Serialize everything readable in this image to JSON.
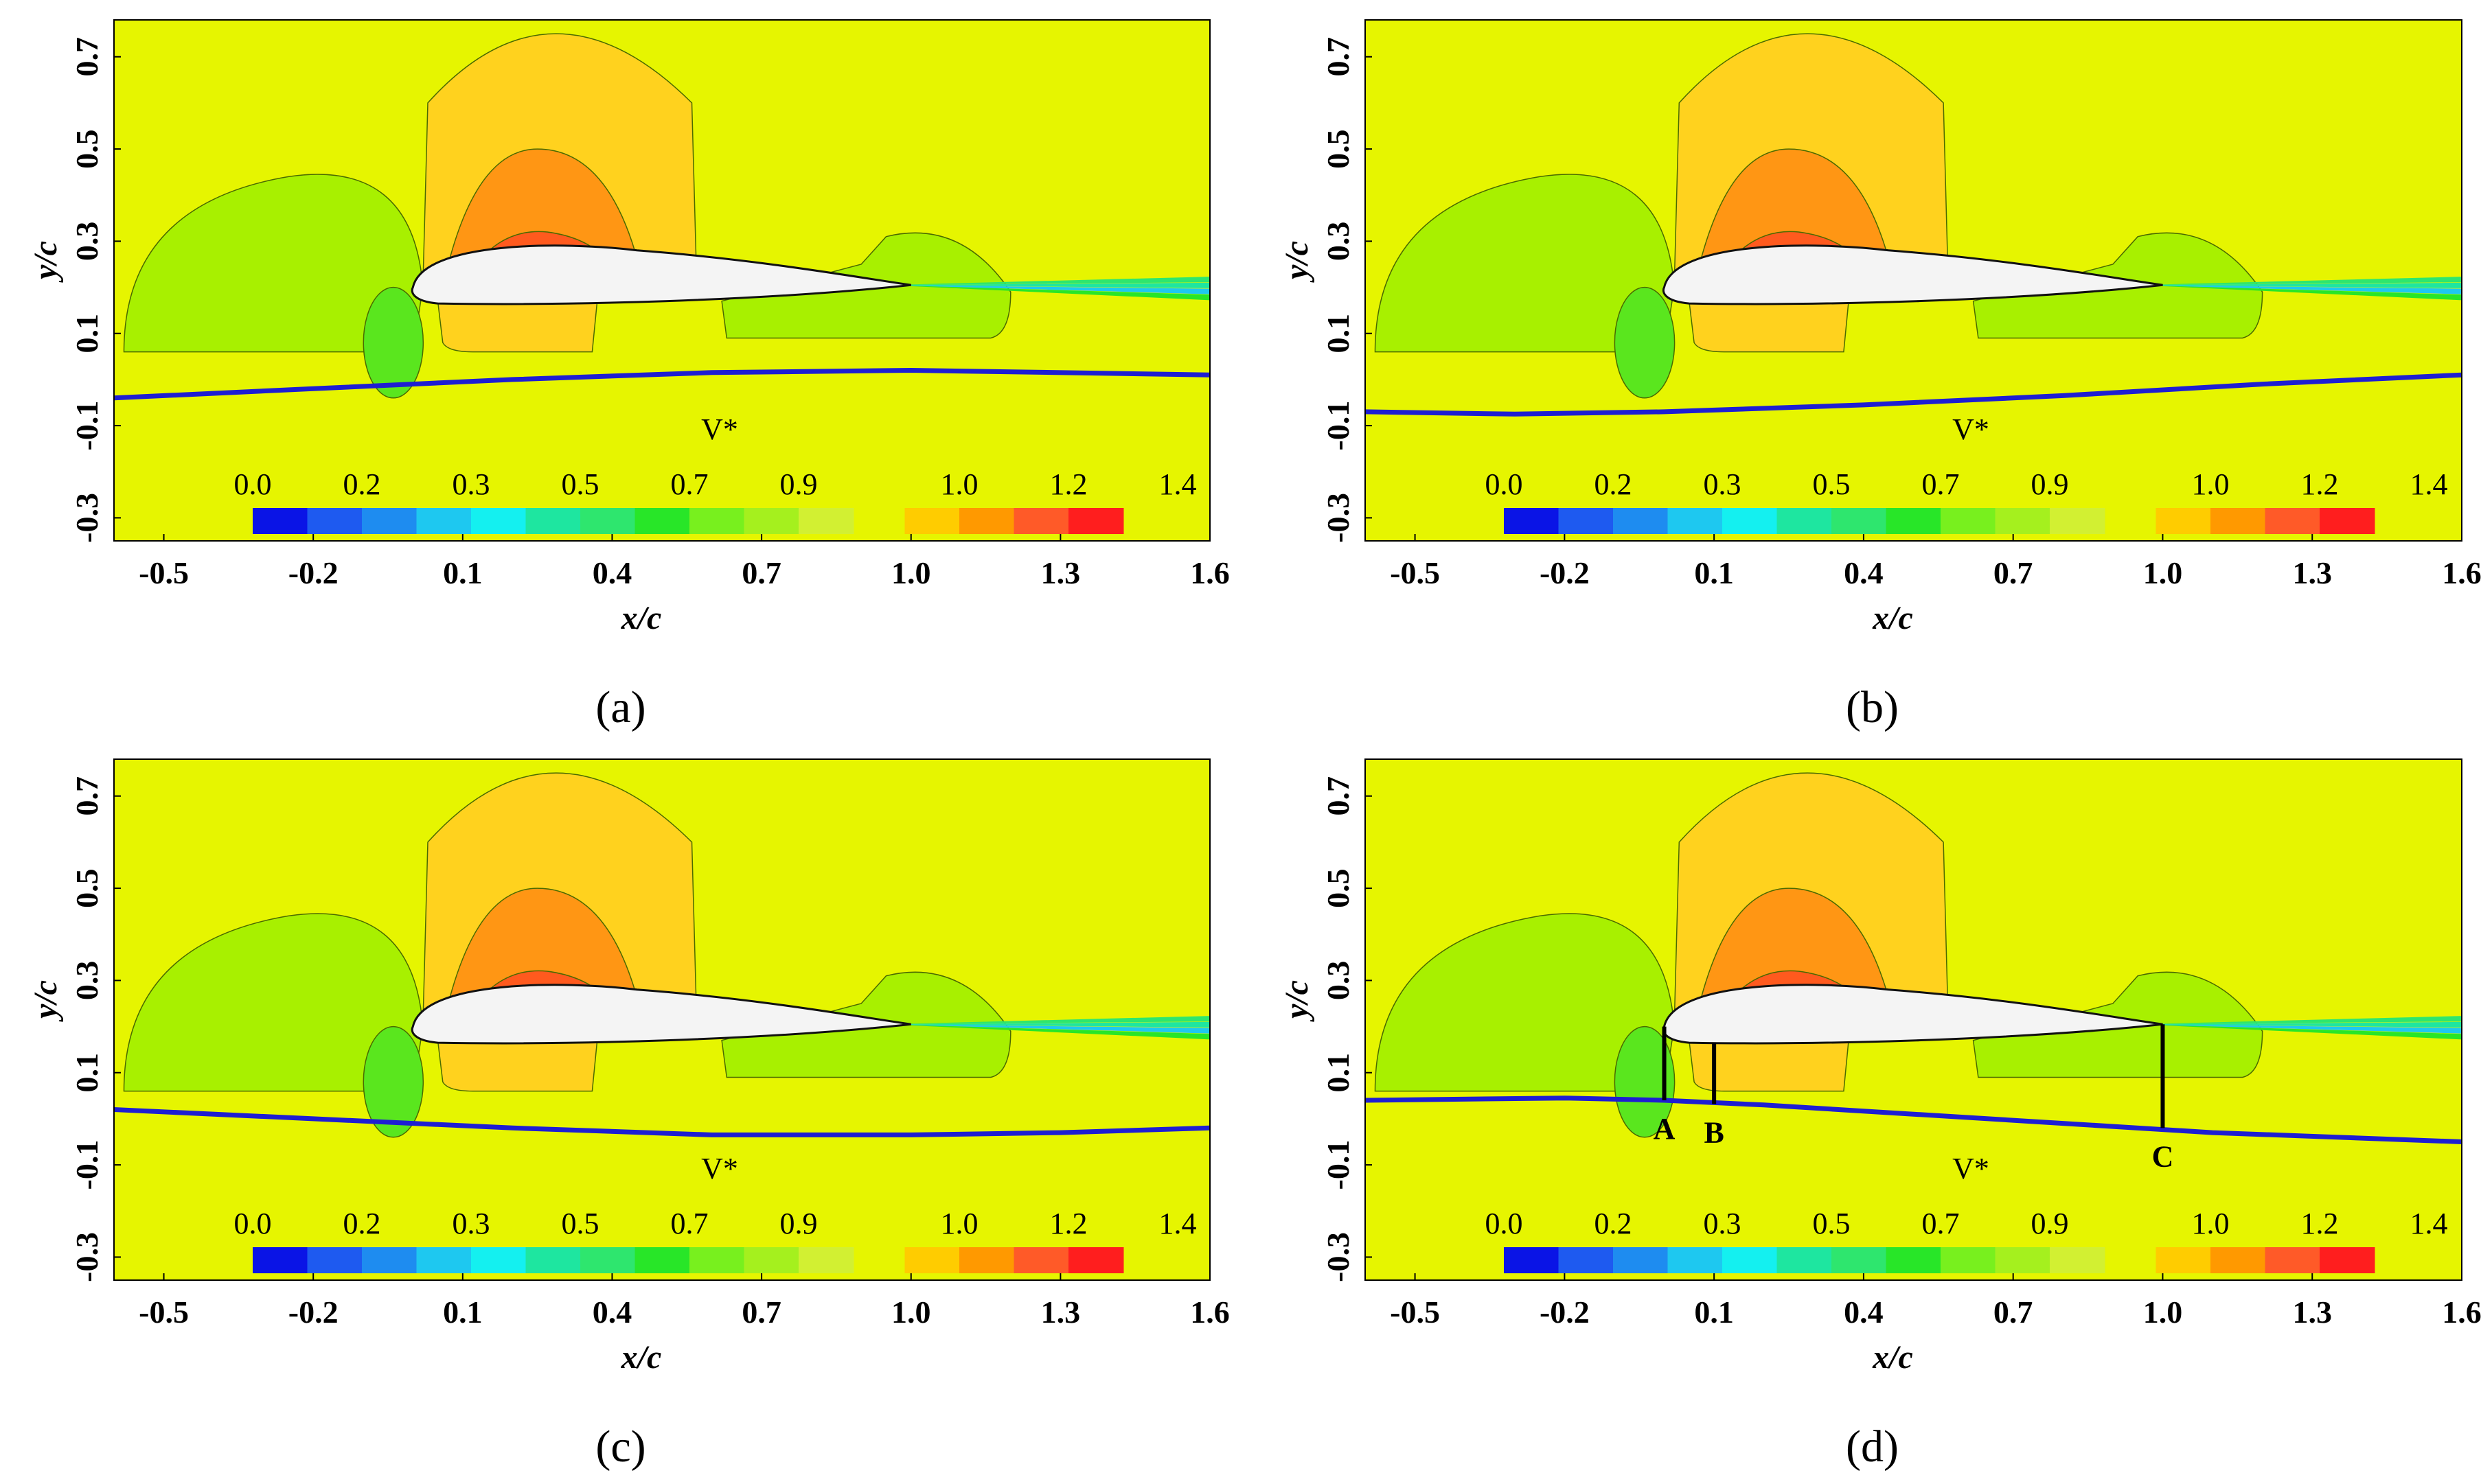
{
  "chart_data": [
    {
      "type": "contour",
      "panel_label": "(a)",
      "title": "",
      "xlabel": "x/c",
      "ylabel": "y/c",
      "xlim": [
        -0.6,
        1.6
      ],
      "ylim": [
        -0.35,
        0.78
      ],
      "xticks": [
        "-0.5",
        "-0.2",
        "0.1",
        "0.4",
        "0.7",
        "1.0",
        "1.3",
        "1.6"
      ],
      "yticks": [
        "-0.3",
        "-0.1",
        "0.1",
        "0.3",
        "0.5",
        "0.7"
      ],
      "colorbar": {
        "title": "V*",
        "labels": [
          "0.0",
          "0.2",
          "0.3",
          "0.5",
          "0.7",
          "0.9",
          "1.0",
          "1.2",
          "1.4"
        ]
      },
      "surface_line": {
        "x": [
          -0.6,
          -0.2,
          0.2,
          0.6,
          1.0,
          1.6
        ],
        "y": [
          -0.04,
          -0.02,
          0.0,
          0.015,
          0.02,
          0.01
        ]
      },
      "markers": []
    },
    {
      "type": "contour",
      "panel_label": "(b)",
      "title": "",
      "xlabel": "x/c",
      "ylabel": "y/c",
      "xlim": [
        -0.6,
        1.6
      ],
      "ylim": [
        -0.35,
        0.78
      ],
      "xticks": [
        "-0.5",
        "-0.2",
        "0.1",
        "0.4",
        "0.7",
        "1.0",
        "1.3",
        "1.6"
      ],
      "yticks": [
        "-0.3",
        "-0.1",
        "0.1",
        "0.3",
        "0.5",
        "0.7"
      ],
      "colorbar": {
        "title": "V*",
        "labels": [
          "0.0",
          "0.2",
          "0.3",
          "0.5",
          "0.7",
          "0.9",
          "1.0",
          "1.2",
          "1.4"
        ]
      },
      "surface_line": {
        "x": [
          -0.6,
          -0.3,
          0.0,
          0.4,
          0.8,
          1.2,
          1.6
        ],
        "y": [
          -0.07,
          -0.075,
          -0.07,
          -0.055,
          -0.035,
          -0.01,
          0.01
        ]
      },
      "markers": []
    },
    {
      "type": "contour",
      "panel_label": "(c)",
      "title": "",
      "xlabel": "x/c",
      "ylabel": "y/c",
      "xlim": [
        -0.6,
        1.6
      ],
      "ylim": [
        -0.35,
        0.78
      ],
      "xticks": [
        "-0.5",
        "-0.2",
        "0.1",
        "0.4",
        "0.7",
        "1.0",
        "1.3",
        "1.6"
      ],
      "yticks": [
        "-0.3",
        "-0.1",
        "0.1",
        "0.3",
        "0.5",
        "0.7"
      ],
      "colorbar": {
        "title": "V*",
        "labels": [
          "0.0",
          "0.2",
          "0.3",
          "0.5",
          "0.7",
          "0.9",
          "1.0",
          "1.2",
          "1.4"
        ]
      },
      "surface_line": {
        "x": [
          -0.6,
          -0.2,
          0.2,
          0.6,
          1.0,
          1.3,
          1.6
        ],
        "y": [
          0.02,
          0.0,
          -0.02,
          -0.035,
          -0.035,
          -0.03,
          -0.02
        ]
      },
      "markers": []
    },
    {
      "type": "contour",
      "panel_label": "(d)",
      "title": "",
      "xlabel": "x/c",
      "ylabel": "y/c",
      "xlim": [
        -0.6,
        1.6
      ],
      "ylim": [
        -0.35,
        0.78
      ],
      "xticks": [
        "-0.5",
        "-0.2",
        "0.1",
        "0.4",
        "0.7",
        "1.0",
        "1.3",
        "1.6"
      ],
      "yticks": [
        "-0.3",
        "-0.1",
        "0.1",
        "0.3",
        "0.5",
        "0.7"
      ],
      "colorbar": {
        "title": "V*",
        "labels": [
          "0.0",
          "0.2",
          "0.3",
          "0.5",
          "0.7",
          "0.9",
          "1.0",
          "1.2",
          "1.4"
        ]
      },
      "surface_line": {
        "x": [
          -0.6,
          -0.2,
          0.0,
          0.2,
          0.5,
          0.8,
          1.1,
          1.6
        ],
        "y": [
          0.04,
          0.045,
          0.04,
          0.03,
          0.01,
          -0.01,
          -0.03,
          -0.05
        ]
      },
      "markers": [
        {
          "label": "A",
          "x": 0.0,
          "y_top": 0.2,
          "y_bottom": 0.04
        },
        {
          "label": "B",
          "x": 0.1,
          "y_top": 0.165,
          "y_bottom": 0.032
        },
        {
          "label": "C",
          "x": 1.0,
          "y_top": 0.205,
          "y_bottom": -0.02
        }
      ]
    }
  ],
  "colorbar_colors": [
    "#0a14e6",
    "#1e5af0",
    "#1e8cf0",
    "#1ec8f0",
    "#14f0f0",
    "#1ee6a0",
    "#2ee66e",
    "#28e628",
    "#78f01e",
    "#a5f01e",
    "#d2f032",
    "#ffcc00",
    "#ff9900",
    "#ff5a28",
    "#ff1e1e"
  ],
  "field_colors": {
    "background": "#e6f500",
    "light_green": "#a8f000",
    "green": "#5ae61e",
    "light_orange": "#ffd21e",
    "orange": "#ff9614",
    "red_orange": "#ff5a1e",
    "airfoil": "#f4f4f4",
    "surface_line": "#1e1ed2"
  }
}
